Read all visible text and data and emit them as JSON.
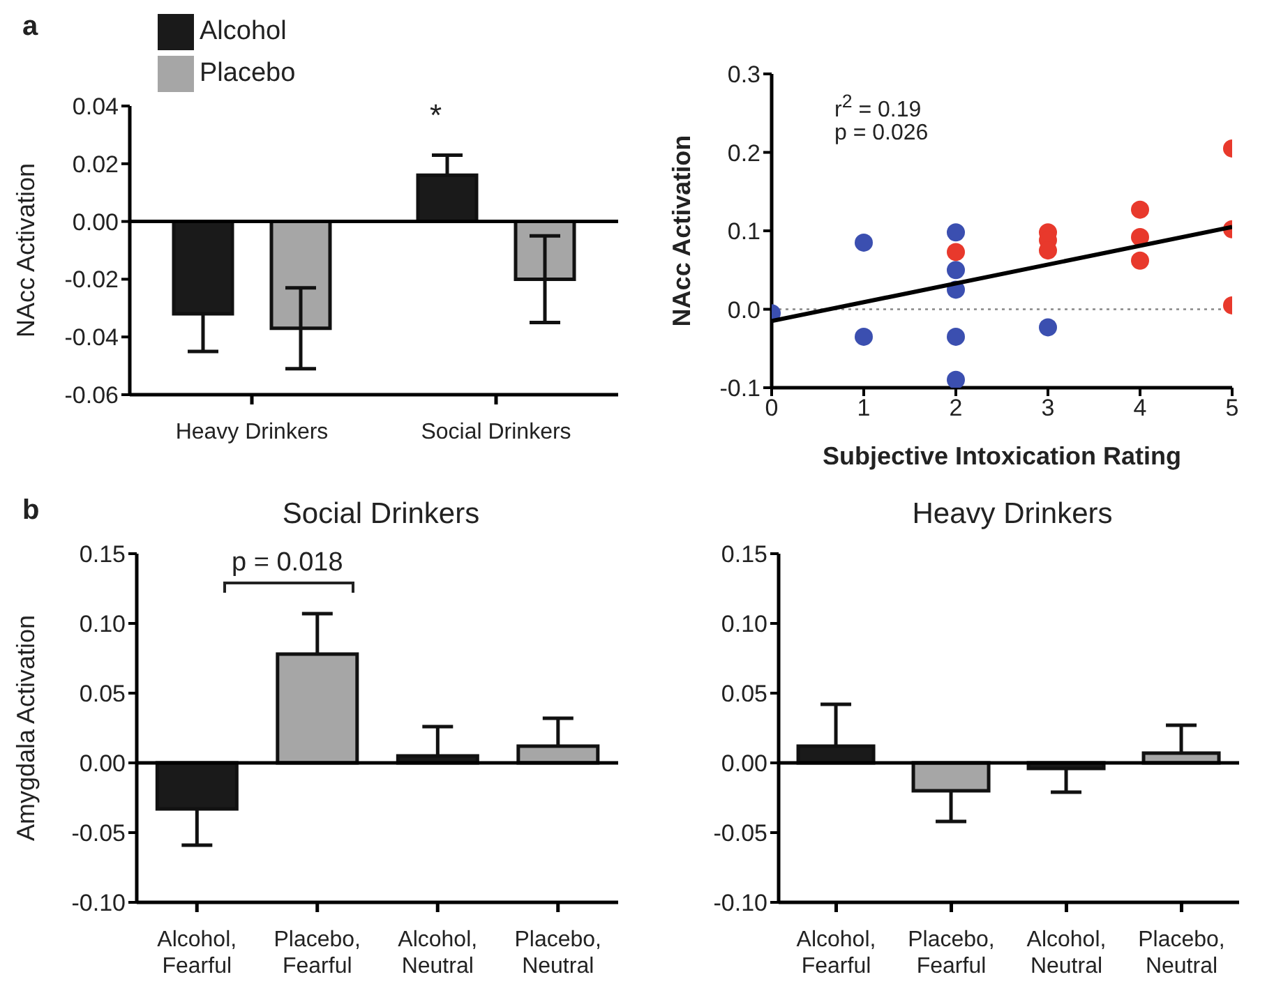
{
  "chart_data": [
    {
      "type": "bar",
      "ylabel": "NAcc Activation",
      "categories": [
        "Heavy Drinkers",
        "Social Drinkers"
      ],
      "series": [
        {
          "name": "Alcohol",
          "color": "#1a1a1a",
          "values": [
            -0.032,
            0.016
          ],
          "errors": [
            [
              -0.045,
              -0.032
            ],
            [
              0.016,
              0.023
            ]
          ]
        },
        {
          "name": "Placebo",
          "color": "#a6a6a6",
          "values": [
            -0.037,
            -0.02
          ],
          "errors": [
            0.014,
            0.015
          ]
        }
      ],
      "ylim": [
        -0.06,
        0.04
      ],
      "yticks": [
        {
          "value": -0.06,
          "label": "-0.06"
        },
        {
          "value": -0.04,
          "label": "-0.04"
        },
        {
          "value": -0.02,
          "label": "-0.02"
        },
        {
          "value": 0,
          "label": "0.00"
        },
        {
          "value": 0.02,
          "label": "0.02"
        },
        {
          "value": 0.04,
          "label": "0.04"
        }
      ],
      "legend": "top left",
      "grid": false,
      "ref_lines": [
        {
          "axis": "y",
          "value": 0,
          "color": "#000000"
        }
      ],
      "annotations": [
        "a",
        "*"
      ]
    },
    {
      "type": "scatter",
      "ylabel": "NAcc Activation",
      "xlabel": "Subjective Intoxication Rating",
      "marker": "circle",
      "series": [
        {
          "color": "#3b4fb0",
          "x": [
            0,
            1,
            1,
            2,
            2,
            2,
            2,
            2,
            3
          ],
          "values": [
            -0.005,
            0.085,
            -0.035,
            0.098,
            0.05,
            0.025,
            -0.035,
            -0.09,
            -0.023
          ]
        },
        {
          "color": "#e8392c",
          "x": [
            2,
            3,
            3,
            3,
            4,
            4,
            4,
            5,
            5,
            5
          ],
          "values": [
            0.073,
            0.098,
            0.088,
            0.075,
            0.127,
            0.092,
            0.062,
            0.205,
            0.102,
            0.005
          ]
        },
        {
          "type": "line",
          "marker": "none",
          "color": "#000000",
          "x": [
            0,
            5
          ],
          "values": [
            -0.015,
            0.105
          ]
        }
      ],
      "xlim": [
        0,
        5
      ],
      "xticks": [
        0,
        1,
        2,
        3,
        4,
        5
      ],
      "ylim": [
        -0.1,
        0.3
      ],
      "yticks": [
        {
          "value": -0.1,
          "label": "-0.1"
        },
        {
          "value": 0,
          "label": "0.0"
        },
        {
          "value": 0.1,
          "label": "0.1"
        },
        {
          "value": 0.2,
          "label": "0.2"
        },
        {
          "value": 0.3,
          "label": "0.3"
        }
      ],
      "grid": false,
      "ref_lines": [
        {
          "axis": "y",
          "value": 0,
          "color": "#888888",
          "line_style": "dotted"
        }
      ],
      "annotations": [
        "r$^{2}$ = 0.19",
        "p = 0.026"
      ]
    },
    {
      "type": "bar",
      "title": "Social Drinkers",
      "ylabel": "Amygdala Activation",
      "categories": [
        "Alcohol, Fearful",
        "Placebo, Fearful",
        "Alcohol, Neutral",
        "Placebo, Neutral"
      ],
      "values": [
        -0.033,
        0.078,
        0.005,
        0.012
      ],
      "colors": [
        "#1a1a1a",
        "#a6a6a6",
        "#1a1a1a",
        "#a6a6a6"
      ],
      "errors": [
        [
          -0.059,
          -0.033
        ],
        [
          0.078,
          0.107
        ],
        [
          0.005,
          0.026
        ],
        [
          0.012,
          0.032
        ]
      ],
      "ylim": [
        -0.1,
        0.15
      ],
      "yticks": [
        {
          "value": -0.1,
          "label": "-0.10"
        },
        {
          "value": -0.05,
          "label": "-0.05"
        },
        {
          "value": 0,
          "label": "0.00"
        },
        {
          "value": 0.05,
          "label": "0.05"
        },
        {
          "value": 0.1,
          "label": "0.10"
        },
        {
          "value": 0.15,
          "label": "0.15"
        }
      ],
      "grid": false,
      "ref_lines": [
        {
          "axis": "y",
          "value": 0,
          "color": "#000000"
        }
      ],
      "annotations": [
        "b",
        "p = 0.018"
      ]
    },
    {
      "type": "bar",
      "title": "Heavy Drinkers",
      "categories": [
        "Alcohol, Fearful",
        "Placebo, Fearful",
        "Alcohol, Neutral",
        "Placebo, Neutral"
      ],
      "values": [
        0.012,
        -0.02,
        -0.004,
        0.007
      ],
      "colors": [
        "#1a1a1a",
        "#a6a6a6",
        "#1a1a1a",
        "#a6a6a6"
      ],
      "errors": [
        [
          0.012,
          0.042
        ],
        [
          -0.042,
          -0.02
        ],
        [
          -0.021,
          -0.004
        ],
        [
          0.007,
          0.027
        ]
      ],
      "ylim": [
        -0.1,
        0.15
      ],
      "yticks": [
        {
          "value": -0.1,
          "label": "-0.10"
        },
        {
          "value": -0.05,
          "label": "-0.05"
        },
        {
          "value": 0,
          "label": "0.00"
        },
        {
          "value": 0.05,
          "label": "0.05"
        },
        {
          "value": 0.1,
          "label": "0.10"
        },
        {
          "value": 0.15,
          "label": "0.15"
        }
      ],
      "grid": false,
      "ref_lines": [
        {
          "axis": "y",
          "value": 0,
          "color": "#000000"
        }
      ]
    }
  ]
}
